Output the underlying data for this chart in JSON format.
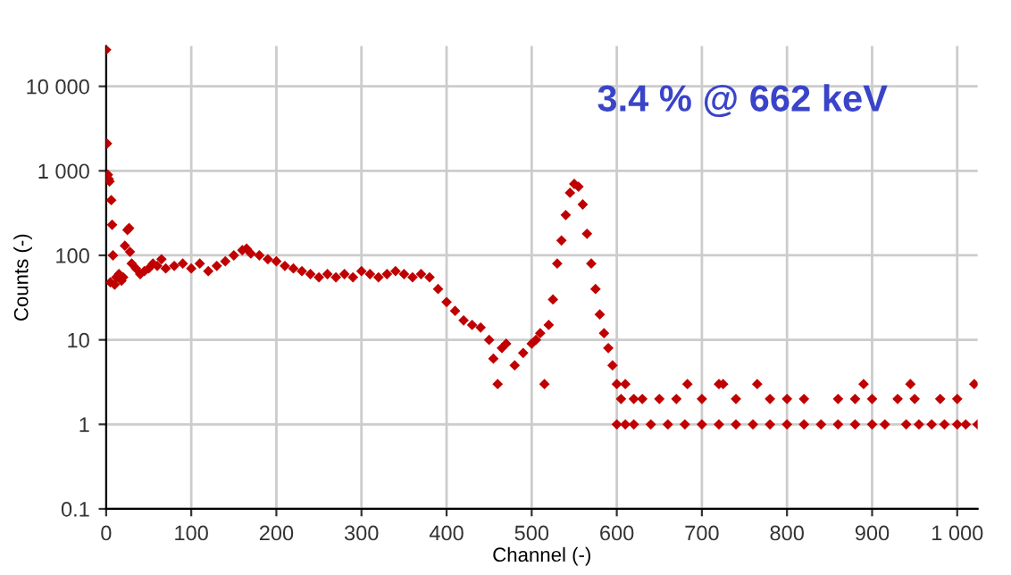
{
  "chart_data": {
    "type": "scatter",
    "xlabel": "Channel (-)",
    "ylabel": "Counts (-)",
    "annotations": [
      "3.4 % @ 662 keV"
    ],
    "series": [
      {
        "color": "#c00000",
        "x": [
          0,
          1,
          2,
          3,
          4,
          5,
          6,
          7,
          8,
          10,
          12,
          15,
          18,
          20,
          22,
          25,
          27,
          28,
          30,
          35,
          40,
          45,
          50,
          55,
          60,
          65,
          70,
          80,
          90,
          100,
          110,
          120,
          130,
          140,
          150,
          160,
          165,
          170,
          180,
          190,
          200,
          210,
          220,
          230,
          240,
          250,
          260,
          270,
          280,
          290,
          300,
          310,
          320,
          330,
          340,
          350,
          360,
          370,
          380,
          390,
          400,
          410,
          420,
          430,
          440,
          450,
          455,
          460,
          465,
          470,
          480,
          490,
          500,
          505,
          510,
          515,
          520,
          525,
          530,
          535,
          540,
          545,
          550,
          555,
          560,
          565,
          570,
          575,
          580,
          585,
          590,
          595,
          600,
          605,
          610,
          620,
          630,
          650,
          670,
          683,
          700,
          720,
          725,
          740,
          765,
          780,
          800,
          820,
          860,
          880,
          890,
          900,
          930,
          945,
          950,
          980,
          1000,
          1020,
          600,
          610,
          620,
          640,
          660,
          680,
          700,
          720,
          740,
          760,
          780,
          800,
          820,
          840,
          860,
          880,
          900,
          915,
          940,
          955,
          970,
          985,
          1000,
          1010,
          1024
        ],
        "values": [
          27000,
          2100,
          900,
          800,
          750,
          48,
          450,
          230,
          100,
          45,
          55,
          60,
          50,
          55,
          130,
          200,
          210,
          110,
          80,
          70,
          60,
          65,
          70,
          80,
          75,
          90,
          70,
          75,
          80,
          70,
          80,
          65,
          75,
          85,
          100,
          115,
          120,
          105,
          100,
          90,
          85,
          75,
          70,
          65,
          60,
          55,
          60,
          55,
          60,
          55,
          65,
          60,
          55,
          60,
          65,
          60,
          55,
          60,
          55,
          40,
          28,
          22,
          17,
          15,
          14,
          10,
          6,
          3,
          8,
          9,
          5,
          7,
          9,
          10,
          12,
          3,
          15,
          30,
          80,
          150,
          300,
          550,
          700,
          650,
          400,
          180,
          80,
          40,
          20,
          12,
          8,
          5,
          3,
          2,
          3,
          2,
          2,
          2,
          2,
          3,
          2,
          3,
          3,
          2,
          3,
          2,
          2,
          2,
          2,
          2,
          3,
          2,
          2,
          3,
          2,
          2,
          2,
          3,
          1,
          1,
          1,
          1,
          1,
          1,
          1,
          1,
          1,
          1,
          1,
          1,
          1,
          1,
          1,
          1,
          1,
          1,
          1,
          1,
          1,
          1,
          1,
          1,
          1
        ]
      }
    ],
    "xlim": [
      0,
      1024
    ],
    "xticks": [
      0,
      100,
      200,
      300,
      400,
      500,
      600,
      700,
      800,
      900,
      {
        "value": 1000,
        "label": "1 000"
      }
    ],
    "log": "y",
    "ylim": [
      0.1,
      30000
    ],
    "yticks": [
      0.1,
      1,
      10,
      100,
      {
        "value": 1000,
        "label": "1 000"
      },
      {
        "value": 10000,
        "label": "10 000"
      }
    ],
    "grid": true,
    "marker": "diamond"
  }
}
